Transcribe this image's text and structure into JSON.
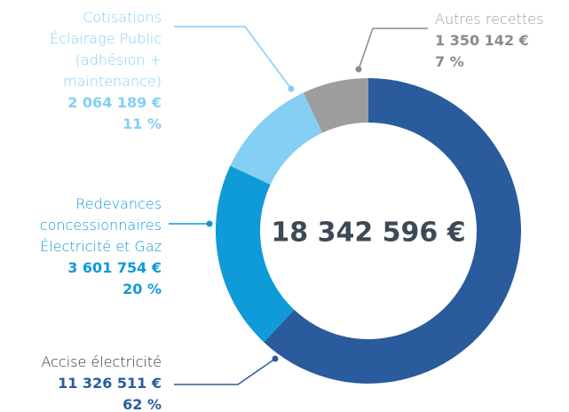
{
  "chart_data": {
    "type": "donut",
    "categories": [
      "Accise électricité",
      "Redevances\nconcessionnaires\nÉlectricité et Gaz",
      "Cotisations\nÉclairage Public\n(adhésion +\nmaintenance)",
      "Autres recettes"
    ],
    "values": [
      62,
      20,
      11,
      7
    ],
    "value_labels": [
      "62 %",
      "20 %",
      "11 %",
      "7 %"
    ],
    "amount_labels": [
      "11 326 511 €",
      "3 601 754 €",
      "2 064 189 €",
      "1 350 142 €"
    ],
    "colors": [
      "#2a5b9c",
      "#0f9ad8",
      "#84cff3",
      "#9d9d9d"
    ],
    "total_label": "18 342 596 €"
  }
}
